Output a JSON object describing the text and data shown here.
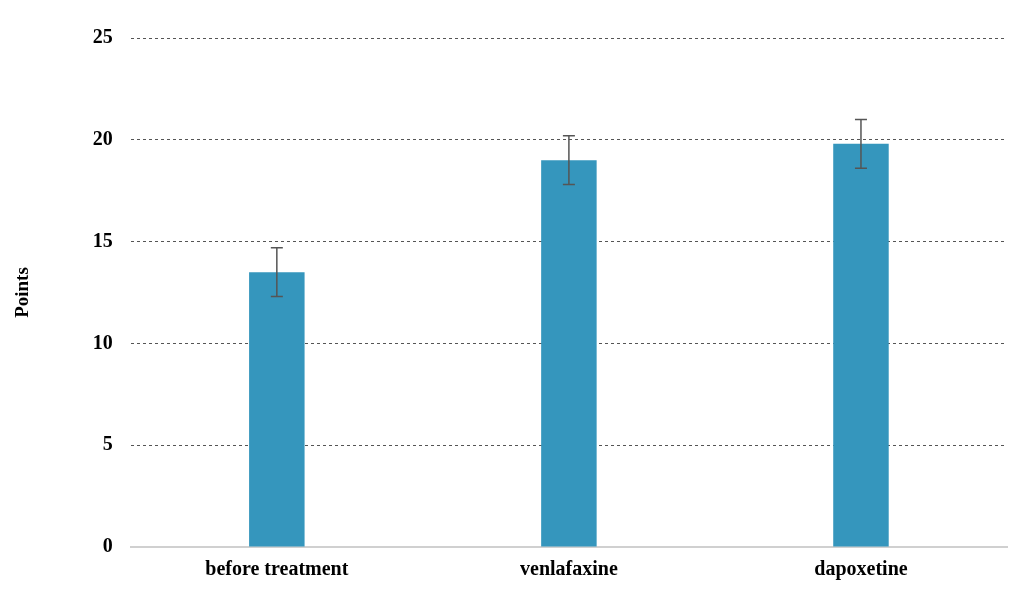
{
  "chart_data": {
    "type": "bar",
    "ylabel": "Points",
    "categories": [
      "before treatment",
      "venlafaxine",
      "dapoxetine"
    ],
    "values": [
      13.5,
      19,
      19.8
    ],
    "color": "#3596bd",
    "errors": [
      1.2,
      1.2,
      1.2
    ],
    "ylim": [
      0,
      25
    ],
    "yticks": [
      0,
      5,
      10,
      15,
      20,
      25
    ],
    "grid": "y"
  }
}
